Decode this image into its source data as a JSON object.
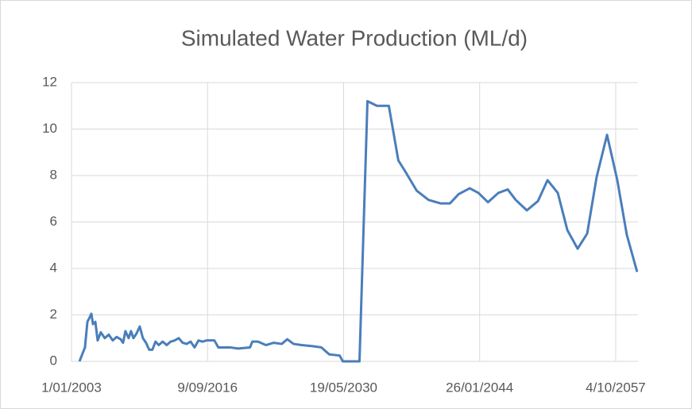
{
  "chart_data": {
    "type": "line",
    "title": "Simulated Water Production (ML/d)",
    "x": [
      "20/10/2003",
      "10/05/2004",
      "7/08/2004",
      "1/11/2004",
      "1/01/2005",
      "28/02/2005",
      "26/05/2005",
      "19/08/2005",
      "13/12/2005",
      "8/05/2006",
      "1/10/2006",
      "24/02/2007",
      "19/07/2007",
      "12/12/2007",
      "10/03/2008",
      "5/06/2008",
      "30/09/2008",
      "27/12/2008",
      "25/03/2009",
      "19/07/2009",
      "13/11/2009",
      "8/03/2010",
      "2/07/2010",
      "26/10/2010",
      "20/02/2011",
      "16/06/2011",
      "10/10/2011",
      "6/03/2012",
      "31/07/2012",
      "24/12/2012",
      "20/05/2013",
      "13/10/2013",
      "8/03/2014",
      "1/08/2014",
      "25/12/2014",
      "20/05/2015",
      "13/10/2015",
      "6/03/2016",
      "31/07/2016",
      "24/12/2016",
      "19/05/2017",
      "11/10/2017",
      "23/12/2018",
      "5/10/2019",
      "17/12/2020",
      "14/03/2021",
      "5/10/2021",
      "24/07/2022",
      "10/05/2023",
      "26/02/2024",
      "17/09/2024",
      "8/05/2025",
      "24/02/2026",
      "7/05/2027",
      "23/02/2028",
      "9/12/2028",
      "25/12/2029",
      "20/04/2030",
      "24/12/2031",
      "12/10/2032",
      "25/09/2033",
      "6/12/2034",
      "21/11/2035",
      "9/09/2036",
      "24/09/2037",
      "3/12/2038",
      "15/02/2040",
      "31/01/2041",
      "17/12/2041",
      "26/01/2043",
      "13/12/2043",
      "28/11/2044",
      "12/12/2045",
      "24/11/2046",
      "12/09/2047",
      "26/10/2048",
      "9/12/2049",
      "24/11/2050",
      "8/12/2051",
      "22/11/2052",
      "5/12/2053",
      "21/11/2054",
      "6/11/2055",
      "20/11/2056",
      "2/12/2057",
      "16/11/2058",
      "1/12/2059"
    ],
    "series": [
      {
        "name": "Simulated Water Production",
        "color": "#4a7ebb",
        "values": [
          0,
          0.6,
          1.7,
          1.9,
          2.05,
          1.6,
          1.7,
          0.9,
          1.25,
          1.0,
          1.15,
          0.9,
          1.05,
          0.95,
          0.8,
          1.3,
          1.0,
          1.3,
          1.0,
          1.2,
          1.5,
          1.0,
          0.8,
          0.5,
          0.5,
          0.85,
          0.7,
          0.85,
          0.7,
          0.85,
          0.9,
          1.0,
          0.8,
          0.75,
          0.85,
          0.6,
          0.9,
          0.85,
          0.9,
          0.9,
          0.9,
          0.6,
          0.6,
          0.55,
          0.6,
          0.85,
          0.85,
          0.7,
          0.8,
          0.75,
          0.95,
          0.75,
          0.7,
          0.65,
          0.6,
          0.3,
          0.25,
          0,
          0,
          11.2,
          11.0,
          11.0,
          8.65,
          8.1,
          7.35,
          6.95,
          6.8,
          6.8,
          7.2,
          7.45,
          7.25,
          6.85,
          7.25,
          7.4,
          6.95,
          6.5,
          6.9,
          7.8,
          7.25,
          5.65,
          4.85,
          5.5,
          7.95,
          9.75,
          7.8,
          5.45,
          3.85
        ]
      }
    ],
    "xlim": [
      "1/01/2003",
      "1/01/2060"
    ],
    "xticks": [
      "1/01/2003",
      "9/09/2016",
      "19/05/2030",
      "26/01/2044",
      "4/10/2057"
    ],
    "ylim": [
      0,
      12
    ],
    "yticks": [
      0,
      2,
      4,
      6,
      8,
      10,
      12
    ],
    "grid": true
  }
}
